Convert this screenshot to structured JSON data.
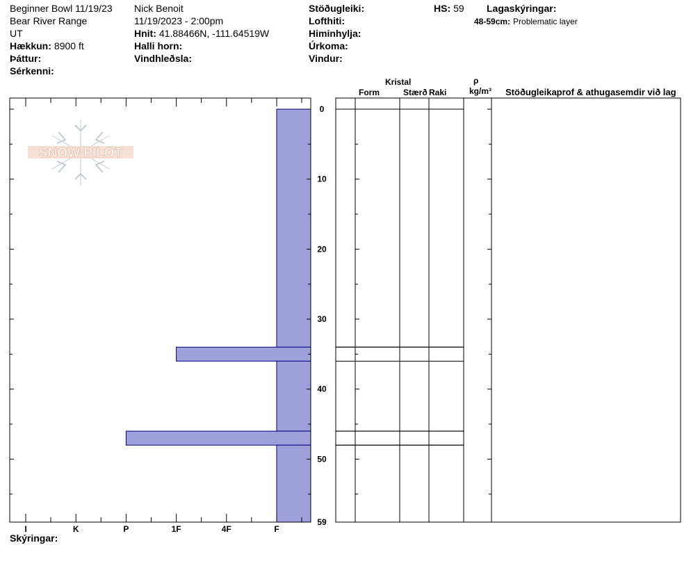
{
  "header": {
    "columns": [
      [
        {
          "text": "Beginner Bowl 11/19/23"
        },
        {
          "text": "Bear River Range"
        },
        {
          "text": "UT"
        },
        {
          "label": "Hækkun:",
          "value": "8900 ft"
        },
        {
          "label": "Þáttur:"
        },
        {
          "label": "Sérkenni:"
        }
      ],
      [
        {
          "text": "Nick Benoit"
        },
        {
          "text": "11/19/2023 - 2:00pm"
        },
        {
          "label": "Hnit:",
          "value": "41.88466N, -111.64519W"
        },
        {
          "label": "Halli horn:"
        },
        {
          "label": "Vindhleðsla:"
        }
      ],
      [
        {
          "label": "Stöðugleiki:"
        },
        {
          "label": "Lofthiti:"
        },
        {
          "label": "Himinhylja:"
        },
        {
          "label": "Úrkoma:"
        },
        {
          "label": "Vindur:"
        }
      ]
    ],
    "hs": {
      "label": "HS:",
      "value": "59"
    },
    "layer_notes_title": "Lagaskýringar:",
    "layer_notes": [
      {
        "label": "48-59cm:",
        "value": "Problematic layer"
      }
    ]
  },
  "logo": "SNOW PILOT",
  "table_headers": {
    "crystal": "Kristal",
    "form": "Form",
    "size": "Stærð",
    "moisture": "Raki",
    "rho": "ρ",
    "density_unit": "kg/m³",
    "tests": "Stöðugleikaprof & athugasemdir við lag"
  },
  "footer": "Skýringar:",
  "chart_data": {
    "type": "snow-profile",
    "categories": [
      "I",
      "K",
      "P",
      "1F",
      "4F",
      "F"
    ],
    "ylim": [
      0,
      59
    ],
    "yticks": [
      0,
      10,
      20,
      30,
      40,
      50,
      59
    ],
    "yminorticks": [
      5,
      15,
      25,
      35,
      45,
      55
    ],
    "color": "#9f9fdb",
    "edge_color": "#000080",
    "layers": [
      {
        "top": 0,
        "bottom": 34,
        "hardness": "F"
      },
      {
        "top": 34,
        "bottom": 36,
        "hardness": "1F"
      },
      {
        "top": 36,
        "bottom": 46,
        "hardness": "F"
      },
      {
        "top": 46,
        "bottom": 48,
        "hardness": "P"
      },
      {
        "top": 48,
        "bottom": 59,
        "hardness": "F"
      }
    ]
  }
}
